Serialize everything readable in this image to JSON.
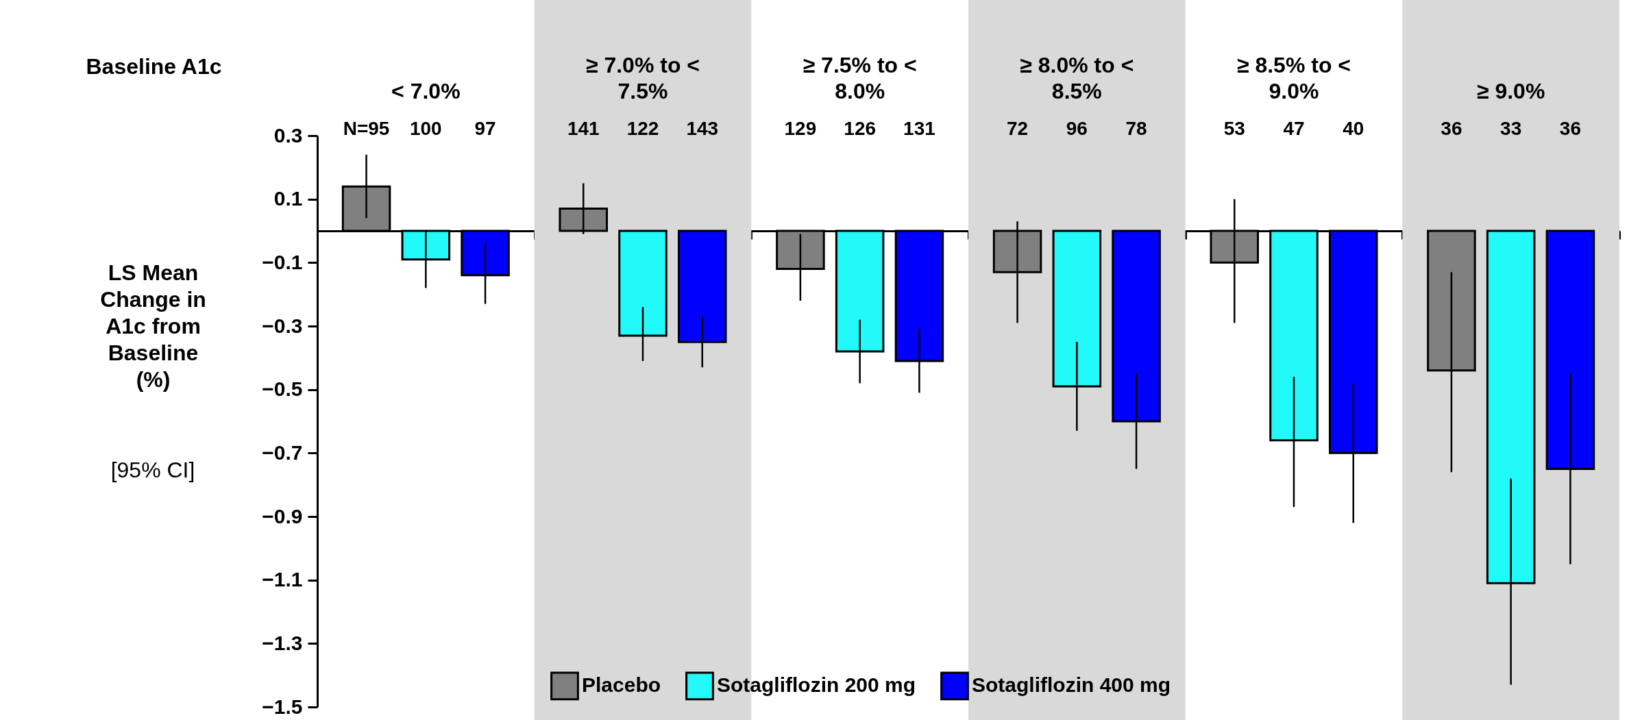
{
  "chart_data": {
    "type": "bar",
    "xlabel": "Baseline A1c",
    "ylabel": "LS Mean Change in A1c from Baseline (%)",
    "annotations": [
      "[95% CI]",
      "N=95",
      "100",
      "97",
      "141",
      "122",
      "143",
      "129",
      "126",
      "131",
      "72",
      "96",
      "78",
      "53",
      "47",
      "40",
      "36",
      "33",
      "36"
    ],
    "grid": false,
    "categories": [
      "< 7.0%",
      "≥ 7.0% to < 7.5%",
      "≥ 7.5% to < 8.0%",
      "≥ 8.0% to < 8.5%",
      "≥ 8.5% to < 9.0%",
      "≥ 9.0%"
    ],
    "series": [
      {
        "name": "Placebo",
        "color": "#808080",
        "values": [
          0.14,
          0.07,
          -0.12,
          -0.13,
          -0.1,
          -0.44
        ],
        "errors": [
          [
            0.04,
            0.24
          ],
          [
            -0.01,
            0.15
          ],
          [
            -0.22,
            -0.01
          ],
          [
            -0.29,
            0.03
          ],
          [
            -0.29,
            0.1
          ],
          [
            -0.76,
            -0.13
          ]
        ]
      },
      {
        "name": "Sotagliflozin 200 mg",
        "color": "#22f9f9",
        "values": [
          -0.09,
          -0.33,
          -0.38,
          -0.49,
          -0.66,
          -1.11
        ],
        "errors": [
          [
            -0.18,
            0.0
          ],
          [
            -0.41,
            -0.24
          ],
          [
            -0.48,
            -0.28
          ],
          [
            -0.63,
            -0.35
          ],
          [
            -0.87,
            -0.46
          ],
          [
            -1.43,
            -0.78
          ]
        ]
      },
      {
        "name": "Sotagliflozin 400 mg",
        "color": "#0000ff",
        "values": [
          -0.14,
          -0.35,
          -0.41,
          -0.6,
          -0.7,
          -0.75
        ],
        "errors": [
          [
            -0.23,
            -0.04
          ],
          [
            -0.43,
            -0.27
          ],
          [
            -0.51,
            -0.31
          ],
          [
            -0.75,
            -0.45
          ],
          [
            -0.92,
            -0.48
          ],
          [
            -1.05,
            -0.45
          ]
        ]
      }
    ],
    "ylim": [
      -1.5,
      0.3
    ],
    "yticks": [
      -1.5,
      -1.3,
      -1.1,
      -0.9,
      -0.7,
      -0.5,
      -0.3,
      -0.1,
      0.1,
      0.3
    ],
    "bands": [
      {
        "axis": "x",
        "from": "≥ 7.0% to < 7.5%",
        "to": "≥ 7.0% to < 7.5%",
        "color": "#d9d9d9"
      },
      {
        "axis": "x",
        "from": "≥ 8.0% to < 8.5%",
        "to": "≥ 8.0% to < 8.5%",
        "color": "#d9d9d9"
      },
      {
        "axis": "x",
        "from": "≥ 9.0%",
        "to": "≥ 9.0%",
        "color": "#d9d9d9"
      }
    ],
    "legend": "bottom"
  }
}
